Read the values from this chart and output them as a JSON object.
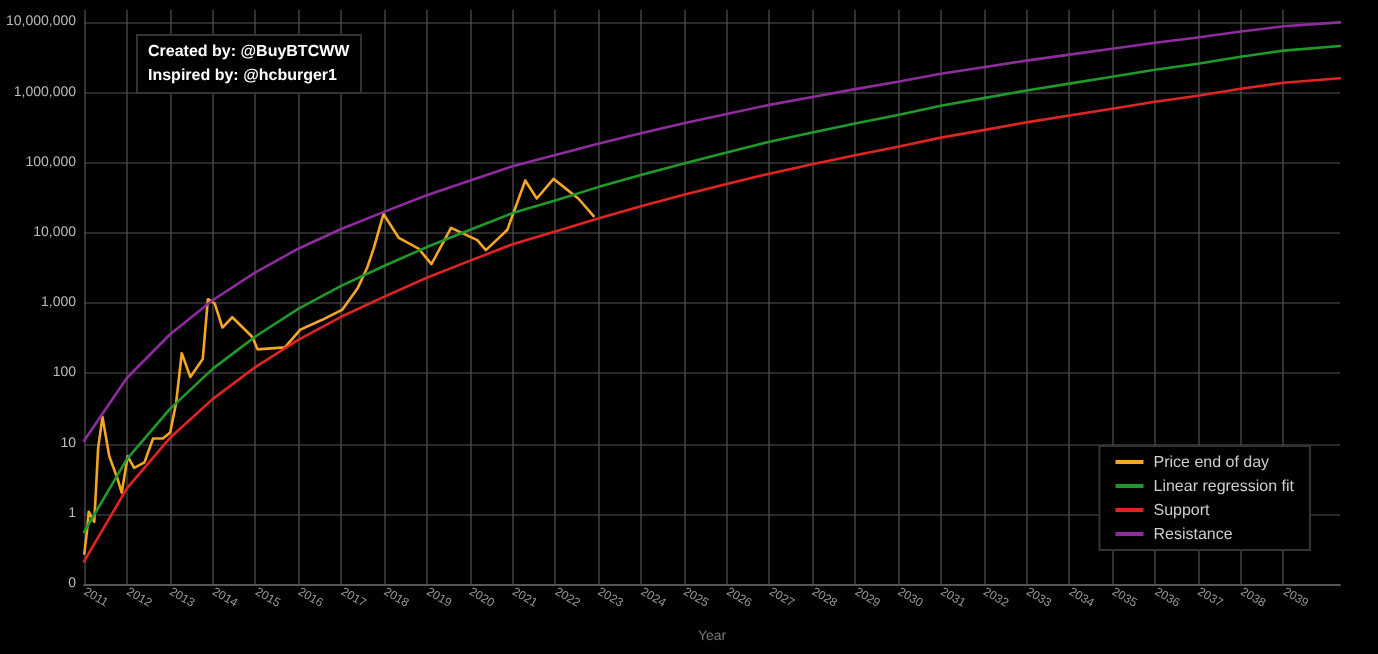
{
  "chart_data": {
    "type": "line",
    "xlabel": "Year",
    "log": "y",
    "grid": true,
    "legend": "bottom right",
    "marker": "none",
    "line_style": "solid",
    "annotations": [
      "Created by: @BuyBTCWW",
      "Inspired by: @hcburger1"
    ],
    "xlim": [
      "2011-01-01",
      "2040-04-27"
    ],
    "ylim": [
      0.1,
      15000000
    ],
    "xticks": [
      "2011",
      "2012",
      "2013",
      "2014",
      "2015",
      "2016",
      "2017",
      "2018",
      "2019",
      "2020",
      "2021",
      "2022",
      "2023",
      "2024",
      "2025",
      "2026",
      "2027",
      "2028",
      "2029",
      "2030",
      "2031",
      "2032",
      "2033",
      "2034",
      "2035",
      "2036",
      "2037",
      "2038",
      "2039"
    ],
    "yticks": [
      {
        "value": 0.1,
        "label": "0"
      },
      1,
      10,
      100,
      {
        "value": 1000,
        "label": "1,000"
      },
      {
        "value": 10000,
        "label": "10,000"
      },
      {
        "value": 100000,
        "label": "100,000"
      },
      {
        "value": 1000000,
        "label": "1,000,000"
      },
      {
        "value": 10000000,
        "label": "10,000,000"
      }
    ],
    "series": [
      {
        "name": "Price end of day",
        "color": "#f5a623",
        "x": [
          "2011-01-03",
          "2011-01-27",
          "2011-02-10",
          "2011-03-29",
          "2011-05-01",
          "2011-06-07",
          "2011-06-25",
          "2011-08-04",
          "2011-10-12",
          "2011-11-18",
          "2012-01-08",
          "2012-03-03",
          "2012-05-30",
          "2012-08-11",
          "2012-11-03",
          "2013-01-04",
          "2013-02-24",
          "2013-04-13",
          "2013-06-25",
          "2013-10-09",
          "2013-11-22",
          "2014-01-19",
          "2014-03-26",
          "2014-06-18",
          "2014-12-06",
          "2015-01-19",
          "2015-09-09",
          "2016-01-19",
          "2016-07-23",
          "2017-01-12",
          "2017-05-23",
          "2017-08-11",
          "2017-10-05",
          "2017-12-28",
          "2018-05-08",
          "2018-10-23",
          "2019-02-10",
          "2019-07-27",
          "2020-03-07",
          "2020-05-19",
          "2020-11-17",
          "2021-04-20",
          "2021-07-27",
          "2021-12-17",
          "2022-07-16",
          "2022-11-24"
        ],
        "values": [
          0.27,
          0.59,
          1.07,
          0.77,
          8.6,
          24,
          16,
          6.6,
          3.2,
          2,
          6.6,
          4.5,
          5.4,
          11.8,
          11.8,
          14.4,
          38,
          194,
          89,
          160,
          1140,
          990,
          450,
          630,
          330,
          220,
          235,
          420,
          580,
          810,
          1650,
          3200,
          6000,
          18600,
          8500,
          6000,
          3600,
          11800,
          7900,
          5700,
          11000,
          56000,
          31000,
          59000,
          31000,
          17400
        ]
      },
      {
        "name": "Linear regression fit",
        "color": "#1f9a2a",
        "x": [
          "2011",
          "2012",
          "2013",
          "2014",
          "2015",
          "2016",
          "2017",
          "2018",
          "2019",
          "2020",
          "2021",
          "2022",
          "2023",
          "2024",
          "2025",
          "2026",
          "2027",
          "2028",
          "2029",
          "2030",
          "2031",
          "2032",
          "2033",
          "2034",
          "2035",
          "2036",
          "2037",
          "2038",
          "2039",
          "2040-04-27"
        ],
        "values": [
          0.55,
          6,
          31,
          116,
          335,
          830,
          1760,
          3380,
          6300,
          11000,
          19200,
          29000,
          45000,
          67000,
          98000,
          140000,
          199000,
          269000,
          363000,
          479000,
          648000,
          834000,
          1070000,
          1340000,
          1680000,
          2110000,
          2580000,
          3240000,
          3960000,
          4600000
        ]
      },
      {
        "name": "Support",
        "color": "#e02424",
        "x": [
          "2011",
          "2012",
          "2013",
          "2014",
          "2015",
          "2016",
          "2017",
          "2018",
          "2019",
          "2020",
          "2021",
          "2022",
          "2023",
          "2024",
          "2025",
          "2026",
          "2027",
          "2028",
          "2029",
          "2030",
          "2031",
          "2032",
          "2033",
          "2034",
          "2035",
          "2036",
          "2037",
          "2038",
          "2039",
          "2040-04-27"
        ],
        "values": [
          0.21,
          2.3,
          12,
          43,
          123,
          300,
          640,
          1230,
          2300,
          4000,
          6900,
          10500,
          16100,
          24000,
          35000,
          50000,
          70000,
          95000,
          128000,
          169000,
          228000,
          292000,
          376000,
          470000,
          589000,
          738000,
          901000,
          1130000,
          1380000,
          1600000
        ]
      },
      {
        "name": "Resistance",
        "color": "#8e2c9e",
        "x": [
          "2011",
          "2012",
          "2013",
          "2014",
          "2015",
          "2016",
          "2017",
          "2018",
          "2019",
          "2020",
          "2021",
          "2022",
          "2023",
          "2024",
          "2025",
          "2026",
          "2027",
          "2028",
          "2029",
          "2030",
          "2031",
          "2032",
          "2033",
          "2034",
          "2035",
          "2036",
          "2037",
          "2038",
          "2039",
          "2040-04-27"
        ],
        "values": [
          11,
          86,
          358,
          1100,
          2740,
          5970,
          11400,
          20000,
          34400,
          55500,
          89300,
          129000,
          187000,
          264000,
          365000,
          494000,
          668000,
          867000,
          1120000,
          1430000,
          1850000,
          2300000,
          2850000,
          3470000,
          4210000,
          5120000,
          6080000,
          7390000,
          8790000,
          10000000
        ]
      }
    ]
  }
}
